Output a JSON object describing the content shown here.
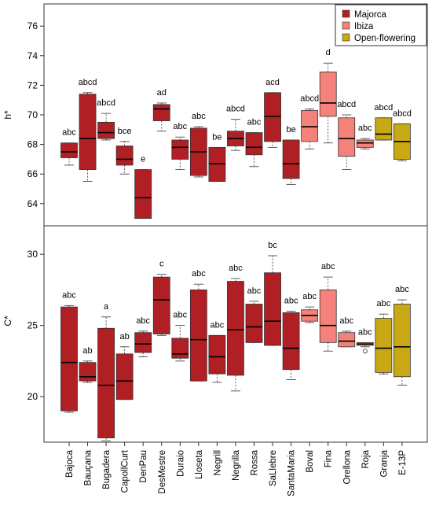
{
  "chart_data": [
    {
      "type": "box",
      "ylabel": "h*",
      "ylim": [
        62.5,
        77.5
      ],
      "yticks": [
        64,
        66,
        68,
        70,
        72,
        74,
        76
      ],
      "legend": {
        "placement": "top-right",
        "entries": [
          {
            "name": "Majorca",
            "color": "#b01f24"
          },
          {
            "name": "Ibiza",
            "color": "#f4827a"
          },
          {
            "name": "Open-flowering",
            "color": "#c8a814"
          }
        ]
      },
      "boxes": [
        {
          "category": "Bajoca",
          "group": "Majorca",
          "whisker_low": 66.6,
          "q1": 67.1,
          "median": 67.5,
          "q3": 68.1,
          "whisker_high": 68.1,
          "letter": "abc"
        },
        {
          "category": "Bauçana",
          "group": "Majorca",
          "whisker_low": 65.5,
          "q1": 66.3,
          "median": 68.4,
          "q3": 71.4,
          "whisker_high": 71.5,
          "letter": "abcd"
        },
        {
          "category": "Bugadera",
          "group": "Majorca",
          "whisker_low": 68.3,
          "q1": 68.4,
          "median": 68.8,
          "q3": 69.5,
          "whisker_high": 70.1,
          "letter": "abcd"
        },
        {
          "category": "CapollCurt",
          "group": "Majorca",
          "whisker_low": 66.0,
          "q1": 66.6,
          "median": 67.0,
          "q3": 67.9,
          "whisker_high": 68.2,
          "letter": "bce"
        },
        {
          "category": "DenPau",
          "group": "Majorca",
          "whisker_low": 63.0,
          "q1": 63.0,
          "median": 64.4,
          "q3": 66.3,
          "whisker_high": 66.3,
          "letter": "e"
        },
        {
          "category": "DesMestre",
          "group": "Majorca",
          "whisker_low": 68.9,
          "q1": 69.6,
          "median": 70.4,
          "q3": 70.7,
          "whisker_high": 70.8,
          "letter": "ad"
        },
        {
          "category": "Duraio",
          "group": "Majorca",
          "whisker_low": 66.3,
          "q1": 67.0,
          "median": 67.8,
          "q3": 68.3,
          "whisker_high": 68.5,
          "letter": "abc"
        },
        {
          "category": "Lloseta",
          "group": "Majorca",
          "whisker_low": 65.8,
          "q1": 65.9,
          "median": 67.5,
          "q3": 69.1,
          "whisker_high": 69.2,
          "letter": "abc"
        },
        {
          "category": "Negrill",
          "group": "Majorca",
          "whisker_low": 65.5,
          "q1": 65.5,
          "median": 66.7,
          "q3": 67.8,
          "whisker_high": 67.8,
          "letter": "be"
        },
        {
          "category": "Negrilla",
          "group": "Majorca",
          "whisker_low": 67.6,
          "q1": 67.9,
          "median": 68.4,
          "q3": 68.9,
          "whisker_high": 69.7,
          "letter": "abcd"
        },
        {
          "category": "Rossa",
          "group": "Majorca",
          "whisker_low": 66.5,
          "q1": 67.3,
          "median": 67.8,
          "q3": 68.8,
          "whisker_high": 68.8,
          "letter": "abc"
        },
        {
          "category": "SaLlebre",
          "group": "Majorca",
          "whisker_low": 67.8,
          "q1": 68.2,
          "median": 69.9,
          "q3": 71.5,
          "whisker_high": 71.5,
          "letter": "acd"
        },
        {
          "category": "SantaMaria",
          "group": "Majorca",
          "whisker_low": 65.3,
          "q1": 65.7,
          "median": 66.7,
          "q3": 68.3,
          "whisker_high": 68.3,
          "letter": "be"
        },
        {
          "category": "Boval",
          "group": "Ibiza",
          "whisker_low": 67.7,
          "q1": 68.2,
          "median": 69.2,
          "q3": 70.3,
          "whisker_high": 70.4,
          "letter": "abcd"
        },
        {
          "category": "Fina",
          "group": "Ibiza",
          "whisker_low": 68.1,
          "q1": 69.9,
          "median": 70.8,
          "q3": 72.9,
          "whisker_high": 73.5,
          "letter": "d"
        },
        {
          "category": "Orellona",
          "group": "Ibiza",
          "whisker_low": 66.3,
          "q1": 67.2,
          "median": 68.4,
          "q3": 69.8,
          "whisker_high": 70.0,
          "letter": "abcd"
        },
        {
          "category": "Roja",
          "group": "Ibiza",
          "whisker_low": 67.7,
          "q1": 67.8,
          "median": 68.1,
          "q3": 68.3,
          "whisker_high": 68.4,
          "letter": "abc"
        },
        {
          "category": "Granja",
          "group": "Open-flowering",
          "whisker_low": 68.3,
          "q1": 68.3,
          "median": 68.7,
          "q3": 69.8,
          "whisker_high": 69.8,
          "letter": "abcd"
        },
        {
          "category": "E-13P",
          "group": "Open-flowering",
          "whisker_low": 66.9,
          "q1": 67.0,
          "median": 68.2,
          "q3": 69.4,
          "whisker_high": 69.4,
          "letter": "abcd"
        }
      ]
    },
    {
      "type": "box",
      "ylabel": "C*",
      "ylim": [
        16.8,
        32.0
      ],
      "yticks": [
        20,
        25,
        30
      ],
      "categories": [
        "Bajoca",
        "Bauçana",
        "Bugadera",
        "CapollCurt",
        "DenPau",
        "DesMestre",
        "Duraio",
        "Lloseta",
        "Negrill",
        "Negrilla",
        "Rossa",
        "SaLlebre",
        "SantaMaria",
        "Boval",
        "Fina",
        "Orellona",
        "Roja",
        "Granja",
        "E-13P"
      ],
      "boxes": [
        {
          "category": "Bajoca",
          "group": "Majorca",
          "whisker_low": 18.9,
          "q1": 19.0,
          "median": 22.4,
          "q3": 26.3,
          "whisker_high": 26.4,
          "letter": "abc"
        },
        {
          "category": "Bauçana",
          "group": "Majorca",
          "whisker_low": 21.0,
          "q1": 21.1,
          "median": 21.4,
          "q3": 22.4,
          "whisker_high": 22.5,
          "letter": "ab"
        },
        {
          "category": "Bugadera",
          "group": "Majorca",
          "whisker_low": 16.9,
          "q1": 17.1,
          "median": 20.8,
          "q3": 24.8,
          "whisker_high": 25.6,
          "letter": "a"
        },
        {
          "category": "CapollCurt",
          "group": "Majorca",
          "whisker_low": 19.8,
          "q1": 19.8,
          "median": 21.1,
          "q3": 23.0,
          "whisker_high": 23.5,
          "letter": "ab"
        },
        {
          "category": "DenPau",
          "group": "Majorca",
          "whisker_low": 22.8,
          "q1": 23.1,
          "median": 23.7,
          "q3": 24.5,
          "whisker_high": 24.6,
          "letter": "abc"
        },
        {
          "category": "DesMestre",
          "group": "Majorca",
          "whisker_low": 24.3,
          "q1": 24.4,
          "median": 26.8,
          "q3": 28.4,
          "whisker_high": 28.6,
          "letter": "c"
        },
        {
          "category": "Duraio",
          "group": "Majorca",
          "whisker_low": 22.5,
          "q1": 22.7,
          "median": 23.0,
          "q3": 24.1,
          "whisker_high": 25.0,
          "letter": "abc"
        },
        {
          "category": "Lloseta",
          "group": "Majorca",
          "whisker_low": 21.1,
          "q1": 21.1,
          "median": 24.0,
          "q3": 27.5,
          "whisker_high": 27.9,
          "letter": "abc"
        },
        {
          "category": "Negrill",
          "group": "Majorca",
          "whisker_low": 21.0,
          "q1": 21.6,
          "median": 22.8,
          "q3": 24.3,
          "whisker_high": 24.3,
          "letter": "abc"
        },
        {
          "category": "Negrilla",
          "group": "Majorca",
          "whisker_low": 20.4,
          "q1": 21.5,
          "median": 24.7,
          "q3": 28.1,
          "whisker_high": 28.3,
          "letter": "abc"
        },
        {
          "category": "Rossa",
          "group": "Majorca",
          "whisker_low": 23.8,
          "q1": 23.8,
          "median": 24.9,
          "q3": 26.5,
          "whisker_high": 26.7,
          "letter": "abc"
        },
        {
          "category": "SaLlebre",
          "group": "Majorca",
          "whisker_low": 23.6,
          "q1": 23.6,
          "median": 25.3,
          "q3": 28.7,
          "whisker_high": 29.9,
          "letter": "bc"
        },
        {
          "category": "SantaMaria",
          "group": "Majorca",
          "whisker_low": 21.2,
          "q1": 21.9,
          "median": 23.4,
          "q3": 25.9,
          "whisker_high": 26.0,
          "letter": "abc"
        },
        {
          "category": "Boval",
          "group": "Ibiza",
          "whisker_low": 25.2,
          "q1": 25.3,
          "median": 25.7,
          "q3": 26.1,
          "whisker_high": 26.3,
          "letter": "abc"
        },
        {
          "category": "Fina",
          "group": "Ibiza",
          "whisker_low": 23.2,
          "q1": 23.8,
          "median": 25.0,
          "q3": 27.5,
          "whisker_high": 28.4,
          "letter": "abc"
        },
        {
          "category": "Orellona",
          "group": "Ibiza",
          "whisker_low": 23.5,
          "q1": 23.5,
          "median": 23.9,
          "q3": 24.5,
          "whisker_high": 24.6,
          "letter": "abc"
        },
        {
          "category": "Roja",
          "group": "Ibiza",
          "whisker_low": 23.5,
          "q1": 23.6,
          "median": 23.7,
          "q3": 23.8,
          "whisker_high": 23.8,
          "outliers": [
            23.2
          ],
          "letter": "abc"
        },
        {
          "category": "Granja",
          "group": "Open-flowering",
          "whisker_low": 21.6,
          "q1": 21.7,
          "median": 23.4,
          "q3": 25.5,
          "whisker_high": 25.8,
          "letter": "abc"
        },
        {
          "category": "E-13P",
          "group": "Open-flowering",
          "whisker_low": 20.8,
          "q1": 21.4,
          "median": 23.5,
          "q3": 26.5,
          "whisker_high": 26.8,
          "letter": "abc"
        }
      ]
    }
  ]
}
